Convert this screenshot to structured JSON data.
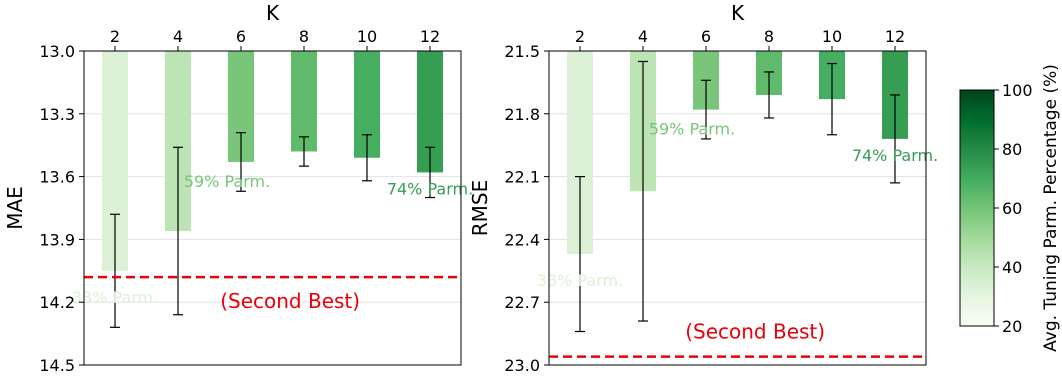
{
  "chart_data": [
    {
      "type": "bar",
      "panel": "left",
      "xlabel": "K",
      "ylabel": "MAE",
      "categories": [
        "2",
        "4",
        "6",
        "8",
        "10",
        "12"
      ],
      "values": [
        14.05,
        13.86,
        13.53,
        13.48,
        13.51,
        13.58
      ],
      "errors": [
        0.27,
        0.4,
        0.14,
        0.07,
        0.11,
        0.12
      ],
      "param_percent": [
        33,
        43,
        59,
        64,
        69,
        74
      ],
      "ylim": [
        13.0,
        14.5
      ],
      "y_inverted": true,
      "yticks": [
        "13.0",
        "13.3",
        "13.6",
        "13.9",
        "14.2",
        "14.5"
      ],
      "reference_line": {
        "value": 14.08,
        "label": "(Second Best)",
        "color": "#e8000b",
        "style": "dashed"
      },
      "annotations": [
        {
          "text": "33% Parm.",
          "bar": 0
        },
        {
          "text": "59% Parm.",
          "bar": 2
        },
        {
          "text": "74% Parm.",
          "bar": 5
        }
      ],
      "grid": true
    },
    {
      "type": "bar",
      "panel": "right",
      "xlabel": "K",
      "ylabel": "RMSE",
      "categories": [
        "2",
        "4",
        "6",
        "8",
        "10",
        "12"
      ],
      "values": [
        22.47,
        22.17,
        21.78,
        21.71,
        21.73,
        21.92
      ],
      "errors": [
        0.37,
        0.62,
        0.14,
        0.11,
        0.17,
        0.21
      ],
      "param_percent": [
        33,
        43,
        59,
        64,
        69,
        74
      ],
      "ylim": [
        21.5,
        23.0
      ],
      "y_inverted": true,
      "yticks": [
        "21.5",
        "21.8",
        "22.1",
        "22.4",
        "22.7",
        "23.0"
      ],
      "reference_line": {
        "value": 22.96,
        "label": "(Second Best)",
        "color": "#e8000b",
        "style": "dashed"
      },
      "annotations": [
        {
          "text": "33% Parm.",
          "bar": 0
        },
        {
          "text": "59% Parm.",
          "bar": 2
        },
        {
          "text": "74% Parm.",
          "bar": 5
        }
      ],
      "grid": true
    }
  ],
  "colorbar": {
    "label": "Avg. Tuning Parm. Percentage (%)",
    "range": [
      20,
      100
    ],
    "ticks": [
      "20",
      "40",
      "60",
      "80",
      "100"
    ],
    "cmap": [
      "#f7fcf5",
      "#e5f5e0",
      "#c7e9c0",
      "#a1d99b",
      "#74c476",
      "#41ab5d",
      "#238b45",
      "#006d2c",
      "#00441b"
    ]
  }
}
